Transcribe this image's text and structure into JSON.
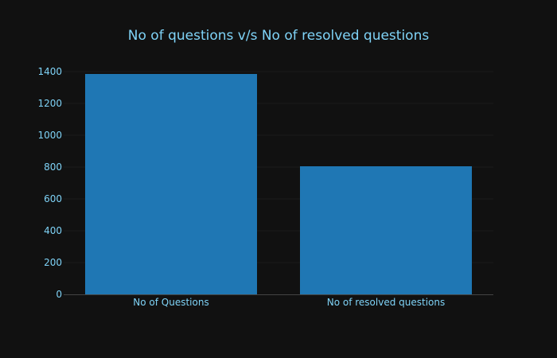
{
  "theme": {
    "background": "#111111",
    "bar_color": "#1f77b4",
    "text_color": "#7fd3f7",
    "grid_color": "#1c1c1c",
    "axis_line_color": "#444444"
  },
  "chart_data": {
    "type": "bar",
    "title": "No of questions v/s No of resolved questions",
    "xlabel": "",
    "ylabel": "",
    "categories": [
      "No of Questions",
      "No of resolved questions"
    ],
    "values": [
      1385,
      805
    ],
    "ylim": [
      0,
      1450
    ],
    "yticks": [
      0,
      200,
      400,
      600,
      800,
      1000,
      1200,
      1400
    ],
    "ytick_labels": [
      "0",
      "200",
      "400",
      "600",
      "800",
      "1000",
      "1200",
      "1400"
    ],
    "grid": true,
    "legend": "none"
  }
}
